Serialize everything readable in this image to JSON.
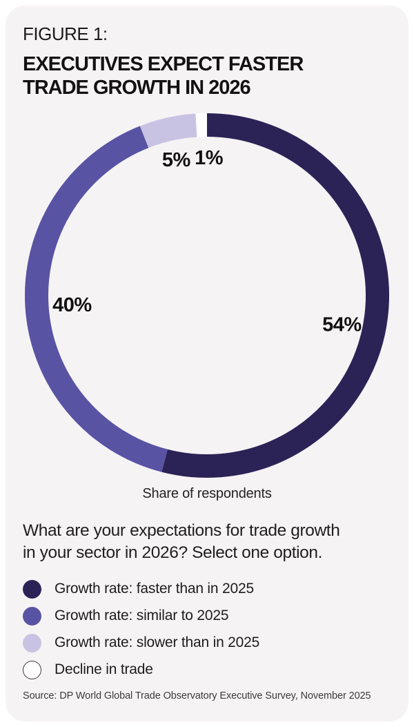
{
  "figure": {
    "label": "FIGURE 1:",
    "title_lines": [
      "EXECUTIVES EXPECT FASTER",
      "TRADE GROWTH IN 2026"
    ]
  },
  "chart_data": {
    "type": "pie",
    "subtype": "donut",
    "title": "Executives expect faster trade growth in 2026",
    "caption": "Share of respondents",
    "categories": [
      "Growth rate: faster than in 2025",
      "Growth rate: similar to 2025",
      "Growth rate: slower than in 2025",
      "Decline in trade"
    ],
    "values": [
      54,
      40,
      5,
      1
    ],
    "labels": [
      "54%",
      "40%",
      "5%",
      "1%"
    ],
    "colors": [
      "#2b2356",
      "#5953a4",
      "#c9c3e3",
      "#ffffff"
    ],
    "start_angle_deg": 0,
    "direction": "clockwise",
    "legend_position": "bottom-left"
  },
  "question": {
    "line1": "What are your expectations for trade growth",
    "line2": "in your sector in 2026? Select one option.",
    "full": "What are your expectations for trade growth in your sector in 2026? Select one option."
  },
  "source": "Source: DP World Global Trade Observatory Executive Survey, November 2025",
  "colors": {
    "page_bg": "#ffffff",
    "card_bg": "#f6f3f5",
    "text": "#171717"
  }
}
